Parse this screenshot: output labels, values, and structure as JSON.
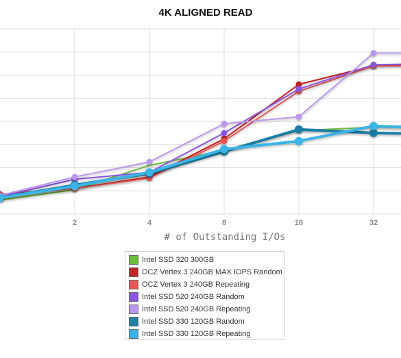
{
  "chart_data": {
    "type": "line",
    "title": "4K ALIGNED READ",
    "xlabel": "# of Outstanding I/Os",
    "ylabel": "",
    "x_scale": "log2",
    "x": [
      1,
      2,
      4,
      8,
      16,
      32,
      64
    ],
    "x_tick_labels": [
      "2",
      "4",
      "8",
      "16",
      "32"
    ],
    "x_ticks": [
      2,
      4,
      8,
      16,
      32
    ],
    "xlim": [
      1,
      45.25
    ],
    "ylim": [
      0,
      8
    ],
    "grid": true,
    "legend_position": "bottom-center",
    "series": [
      {
        "name": "Intel SSD 320 300GB",
        "color": "#6dbb3a",
        "marker": false,
        "thick": false,
        "values": [
          0.6,
          1.05,
          2.1,
          2.75,
          3.6,
          3.75,
          3.7
        ]
      },
      {
        "name": "OCZ Vertex 3 240GB MAX IOPS Random",
        "color": "#c02424",
        "marker": true,
        "thick": false,
        "values": [
          0.85,
          1.1,
          1.6,
          3.25,
          5.6,
          6.4,
          6.55
        ]
      },
      {
        "name": "OCZ Vertex 3 240GB Repeating",
        "color": "#e85555",
        "marker": true,
        "thick": false,
        "values": [
          0.8,
          1.1,
          1.55,
          3.15,
          5.3,
          6.4,
          6.4
        ]
      },
      {
        "name": "Intel SSD 520 240GB Random",
        "color": "#8a55e0",
        "marker": true,
        "thick": false,
        "values": [
          0.75,
          1.5,
          1.8,
          3.5,
          5.4,
          6.45,
          6.5
        ]
      },
      {
        "name": "Intel SSD 520 240GB Repeating",
        "color": "#bb99ee",
        "marker": true,
        "thick": false,
        "values": [
          0.8,
          1.6,
          2.25,
          3.9,
          4.2,
          6.95,
          6.95
        ]
      },
      {
        "name": "Intel SSD 330 120GB Random",
        "color": "#1f7ea6",
        "marker": true,
        "thick": true,
        "values": [
          0.7,
          1.25,
          1.75,
          2.7,
          3.65,
          3.5,
          3.45
        ]
      },
      {
        "name": "Intel SSD 330 120GB Repeating",
        "color": "#3ab4e6",
        "marker": true,
        "thick": true,
        "values": [
          0.7,
          1.2,
          1.8,
          2.8,
          3.15,
          3.8,
          3.7
        ]
      }
    ]
  }
}
